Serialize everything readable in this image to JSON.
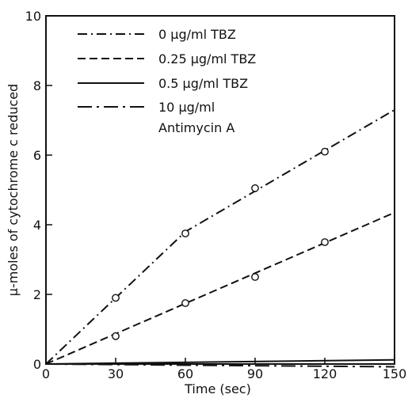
{
  "chart_data": {
    "type": "line",
    "xlabel": "Time  (sec)",
    "ylabel": "μ-moles of cytochrome c reduced",
    "xlim": [
      0,
      150
    ],
    "ylim": [
      0,
      10
    ],
    "xticks": [
      0,
      30,
      60,
      90,
      120,
      150
    ],
    "yticks": [
      0,
      2,
      4,
      6,
      8,
      10
    ],
    "xtick_labels": [
      "0",
      "30",
      "60",
      "90",
      "120",
      "150"
    ],
    "ytick_labels": [
      "0",
      "2",
      "4",
      "6",
      "8",
      "10"
    ],
    "grid": false,
    "legend_position": "top-left",
    "series": [
      {
        "name": "0 μg/ml TBZ",
        "dash": "dash-dot",
        "line_x": [
          0,
          60,
          150
        ],
        "line_y": [
          0,
          3.8,
          7.3
        ],
        "points_x": [
          30,
          60,
          90,
          120
        ],
        "points_y": [
          1.9,
          3.75,
          5.05,
          6.1
        ]
      },
      {
        "name": "0.25 μg/ml TBZ",
        "dash": "dashed",
        "line_x": [
          0,
          150
        ],
        "line_y": [
          0,
          4.35
        ],
        "points_x": [
          30,
          60,
          90,
          120
        ],
        "points_y": [
          0.8,
          1.75,
          2.5,
          3.5
        ]
      },
      {
        "name": "0.5 μg/ml TBZ",
        "dash": "solid",
        "line_x": [
          0,
          150
        ],
        "line_y": [
          0,
          0.12
        ],
        "points_x": [],
        "points_y": []
      },
      {
        "name": "10 μg/ml",
        "name_line2": "Antimycin A",
        "dash": "long-dash-dot",
        "line_x": [
          0,
          150
        ],
        "line_y": [
          0,
          -0.08
        ],
        "points_x": [],
        "points_y": []
      }
    ]
  }
}
